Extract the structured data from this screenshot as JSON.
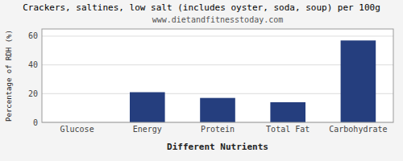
{
  "chart_data": {
    "type": "bar",
    "title": "Crackers, saltines, low salt (includes oyster, soda, soup) per 100g",
    "subtitle": "www.dietandfitnesstoday.com",
    "xlabel": "Different Nutrients",
    "ylabel": "Percentage of RDH (%)",
    "categories": [
      "Glucose",
      "Energy",
      "Protein",
      "Total Fat",
      "Carbohydrate"
    ],
    "values": [
      0.0,
      21.0,
      17.0,
      14.0,
      57.0
    ],
    "color": "#253e7e",
    "ylim": [
      0,
      65
    ],
    "yticks": [
      0,
      20,
      40,
      60
    ],
    "grid": true
  }
}
